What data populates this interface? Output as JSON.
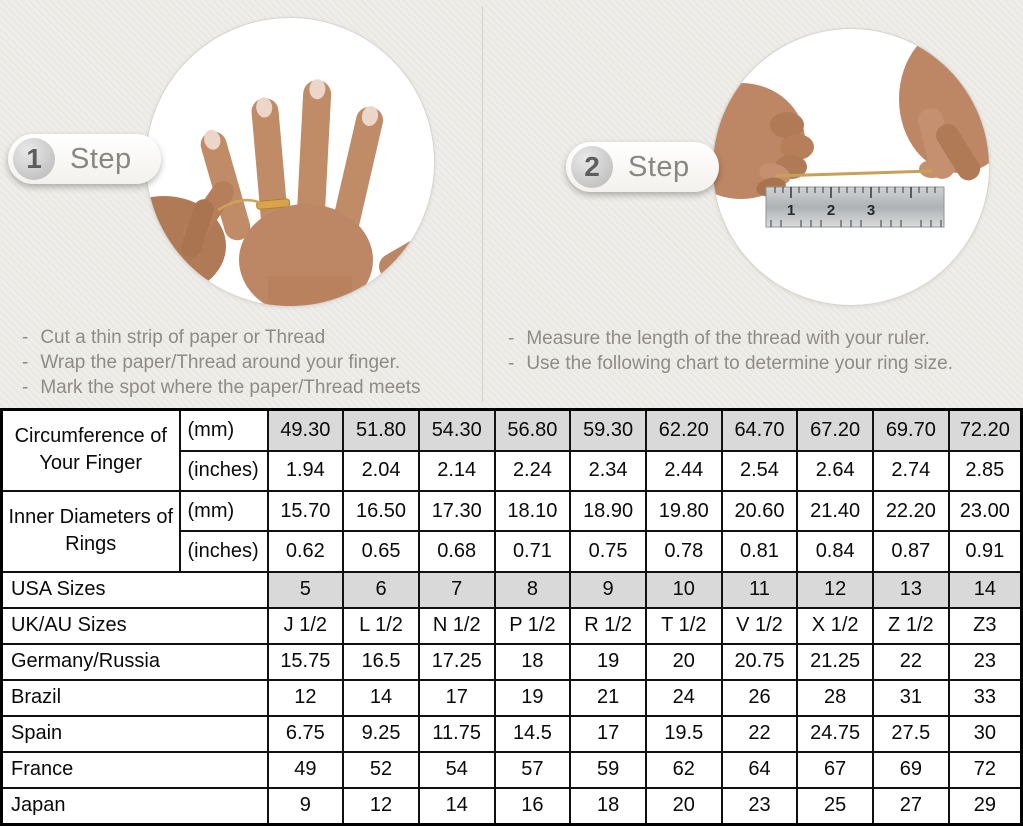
{
  "bullet_char": "-",
  "theme": {
    "background": "#ebe9e4",
    "highlight_gray": "#d9d9d9",
    "gold_thread": "#cda356",
    "skin_tone": "#bd8765"
  },
  "steps": [
    {
      "number": "1",
      "label": "Step",
      "image_alt": "hand-with-ring-and-thread-wrapped-around-finger",
      "instructions": [
        "Cut a thin strip of paper or Thread",
        "Wrap the paper/Thread around your finger.",
        "Mark the spot where the paper/Thread meets"
      ]
    },
    {
      "number": "2",
      "label": "Step",
      "image_alt": "two-hands-measuring-thread-length-on-ruler",
      "ruler_numbers": [
        "1",
        "2",
        "3"
      ],
      "instructions": [
        "Measure the length of the thread with your ruler.",
        "Use the following chart to determine your ring size."
      ]
    }
  ],
  "size_chart": {
    "groups": [
      {
        "label": "Circumference of Your Finger",
        "rows": [
          {
            "unit": "(mm)",
            "highlight": true,
            "values": [
              "49.30",
              "51.80",
              "54.30",
              "56.80",
              "59.30",
              "62.20",
              "64.70",
              "67.20",
              "69.70",
              "72.20"
            ]
          },
          {
            "unit": "(inches)",
            "highlight": false,
            "values": [
              "1.94",
              "2.04",
              "2.14",
              "2.24",
              "2.34",
              "2.44",
              "2.54",
              "2.64",
              "2.74",
              "2.85"
            ]
          }
        ]
      },
      {
        "label": "Inner Diameters of Rings",
        "rows": [
          {
            "unit": "(mm)",
            "highlight": false,
            "values": [
              "15.70",
              "16.50",
              "17.30",
              "18.10",
              "18.90",
              "19.80",
              "20.60",
              "21.40",
              "22.20",
              "23.00"
            ]
          },
          {
            "unit": "(inches)",
            "highlight": false,
            "values": [
              "0.62",
              "0.65",
              "0.68",
              "0.71",
              "0.75",
              "0.78",
              "0.81",
              "0.84",
              "0.87",
              "0.91"
            ]
          }
        ]
      }
    ],
    "simple_rows": [
      {
        "label": "USA Sizes",
        "highlight": true,
        "values": [
          "5",
          "6",
          "7",
          "8",
          "9",
          "10",
          "11",
          "12",
          "13",
          "14"
        ]
      },
      {
        "label": "UK/AU Sizes",
        "highlight": false,
        "values": [
          "J 1/2",
          "L 1/2",
          "N 1/2",
          "P 1/2",
          "R 1/2",
          "T 1/2",
          "V 1/2",
          "X 1/2",
          "Z 1/2",
          "Z3"
        ]
      },
      {
        "label": "Germany/Russia",
        "highlight": false,
        "values": [
          "15.75",
          "16.5",
          "17.25",
          "18",
          "19",
          "20",
          "20.75",
          "21.25",
          "22",
          "23"
        ]
      },
      {
        "label": "Brazil",
        "highlight": false,
        "values": [
          "12",
          "14",
          "17",
          "19",
          "21",
          "24",
          "26",
          "28",
          "31",
          "33"
        ]
      },
      {
        "label": "Spain",
        "highlight": false,
        "values": [
          "6.75",
          "9.25",
          "11.75",
          "14.5",
          "17",
          "19.5",
          "22",
          "24.75",
          "27.5",
          "30"
        ]
      },
      {
        "label": "France",
        "highlight": false,
        "values": [
          "49",
          "52",
          "54",
          "57",
          "59",
          "62",
          "64",
          "67",
          "69",
          "72"
        ]
      },
      {
        "label": "Japan",
        "highlight": false,
        "values": [
          "9",
          "12",
          "14",
          "16",
          "18",
          "20",
          "23",
          "25",
          "27",
          "29"
        ]
      }
    ]
  }
}
